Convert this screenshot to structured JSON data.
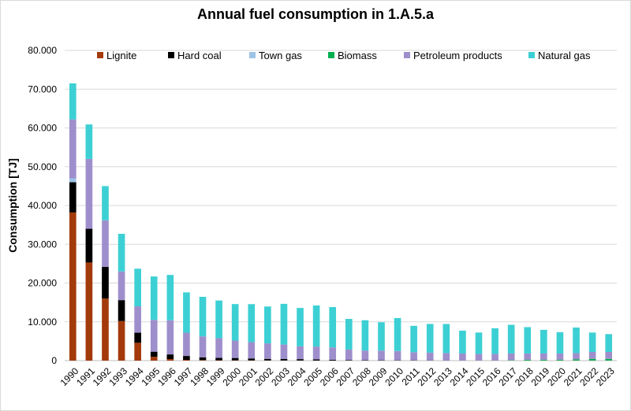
{
  "chart_data": {
    "type": "bar",
    "stacked": true,
    "title": "Annual fuel consumption in 1.A.5.a",
    "xlabel": "",
    "ylabel": "Consumption [TJ]",
    "ylim": [
      0,
      80000
    ],
    "yticks": [
      "0",
      "10.000",
      "20.000",
      "30.000",
      "40.000",
      "50.000",
      "60.000",
      "70.000",
      "80.000"
    ],
    "grid": true,
    "legend_position": "top",
    "categories": [
      "1990",
      "1991",
      "1992",
      "1993",
      "1994",
      "1995",
      "1996",
      "1997",
      "1998",
      "1999",
      "2000",
      "2001",
      "2002",
      "2003",
      "2004",
      "2005",
      "2006",
      "2007",
      "2008",
      "2009",
      "2010",
      "2011",
      "2012",
      "2013",
      "2014",
      "2015",
      "2016",
      "2017",
      "2018",
      "2019",
      "2020",
      "2021",
      "2022",
      "2023"
    ],
    "series": [
      {
        "name": "Lignite",
        "color": "#A33A0B",
        "values": [
          38200,
          25300,
          16000,
          10200,
          4600,
          1000,
          400,
          200,
          150,
          100,
          80,
          60,
          50,
          40,
          30,
          20,
          15,
          10,
          10,
          10,
          10,
          5,
          5,
          5,
          5,
          5,
          5,
          5,
          5,
          5,
          5,
          5,
          5,
          5
        ]
      },
      {
        "name": "Hard coal",
        "color": "#000000",
        "values": [
          7800,
          8700,
          8200,
          5400,
          2600,
          1300,
          1200,
          1000,
          700,
          600,
          600,
          500,
          400,
          400,
          350,
          300,
          200,
          150,
          100,
          80,
          70,
          60,
          50,
          40,
          30,
          30,
          30,
          30,
          30,
          30,
          30,
          30,
          30,
          30
        ]
      },
      {
        "name": "Town gas",
        "color": "#9DC3E6",
        "values": [
          1000,
          0,
          0,
          0,
          0,
          0,
          0,
          0,
          0,
          0,
          0,
          0,
          0,
          0,
          0,
          0,
          0,
          0,
          0,
          0,
          0,
          0,
          0,
          0,
          0,
          0,
          0,
          0,
          0,
          0,
          0,
          0,
          0,
          0
        ]
      },
      {
        "name": "Biomass",
        "color": "#00B050",
        "values": [
          0,
          0,
          0,
          0,
          0,
          0,
          0,
          0,
          0,
          0,
          0,
          0,
          0,
          0,
          0,
          0,
          0,
          0,
          0,
          0,
          0,
          0,
          0,
          0,
          0,
          0,
          0,
          100,
          200,
          200,
          200,
          300,
          400,
          400
        ]
      },
      {
        "name": "Petroleum products",
        "color": "#9E8FCC",
        "values": [
          15200,
          18000,
          12000,
          7400,
          6800,
          8200,
          8800,
          6000,
          5400,
          5100,
          4500,
          4200,
          4000,
          3700,
          3300,
          3300,
          3200,
          2700,
          2500,
          2500,
          2400,
          2100,
          2000,
          1900,
          1800,
          1700,
          1700,
          1700,
          1600,
          1600,
          1600,
          1600,
          1800,
          1800
        ]
      },
      {
        "name": "Natural gas",
        "color": "#3CD0D4",
        "values": [
          9300,
          8900,
          8800,
          9700,
          9700,
          11200,
          11700,
          10400,
          10200,
          9700,
          9400,
          9800,
          9500,
          10500,
          9900,
          10600,
          10400,
          7900,
          7800,
          7300,
          8500,
          6800,
          7400,
          7500,
          5900,
          5500,
          6600,
          7400,
          6800,
          6100,
          5500,
          6600,
          5000,
          4600
        ]
      }
    ]
  }
}
